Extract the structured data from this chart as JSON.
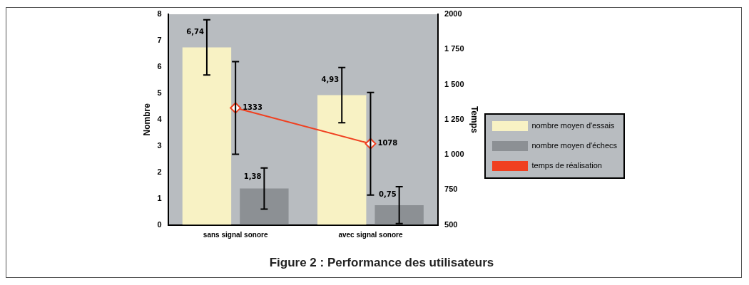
{
  "chart_data": {
    "type": "bar",
    "title": "Figure 2 : Performance des utilisateurs",
    "categories": [
      "sans signal sonore",
      "avec signal sonore"
    ],
    "ylabel": "Nombre",
    "y2label": "Temps",
    "ylim": [
      0,
      8
    ],
    "yticks": [
      0,
      1,
      2,
      3,
      4,
      5,
      6,
      7,
      8
    ],
    "y2lim": [
      500,
      2000
    ],
    "y2ticks": [
      {
        "value": 500,
        "label": "500"
      },
      {
        "value": 750,
        "label": "750"
      },
      {
        "value": 1000,
        "label": "1 000"
      },
      {
        "value": 1250,
        "label": "1 250"
      },
      {
        "value": 1500,
        "label": "1 500"
      },
      {
        "value": 1750,
        "label": "1 750"
      },
      {
        "value": 2000,
        "label": "2000"
      }
    ],
    "grid": false,
    "legend": "right",
    "series": [
      {
        "name": "nombre moyen d'essais",
        "color": "#f8f2c4",
        "values": [
          6.74,
          4.93
        ],
        "errors": [
          1.05,
          1.05
        ],
        "value_labels": [
          "6,74",
          "4,93"
        ]
      },
      {
        "name": "nombre moyen d'échecs",
        "color": "#8c9094",
        "values": [
          1.38,
          0.75
        ],
        "errors": [
          0.78,
          0.7
        ],
        "value_labels": [
          "1,38",
          "0,75"
        ]
      },
      {
        "name": "temps de réalisation",
        "type": "line",
        "axis": "y2",
        "color": "#f04020",
        "marker": "diamond",
        "line_style": "solid",
        "values": [
          1333,
          1078
        ],
        "errors": [
          330,
          365
        ],
        "value_labels": [
          "1333",
          "1078"
        ]
      }
    ]
  }
}
